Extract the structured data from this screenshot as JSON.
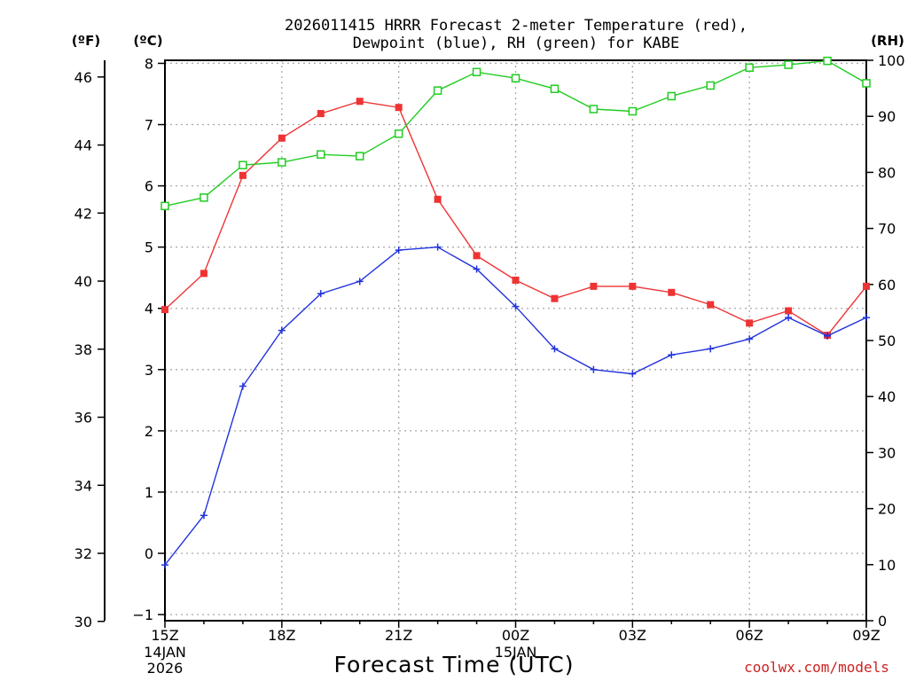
{
  "chart_data": {
    "type": "line",
    "title_line1": "2026011415 HRRR Forecast 2-meter Temperature (red),",
    "title_line2": "Dewpoint (blue), RH (green) for KABE",
    "left_outer_unit": "(ºF)",
    "left_inner_unit": "(ºC)",
    "right_unit": "(RH)",
    "xlabel": "Forecast Time (UTC)",
    "credit": "coolwx.com/models",
    "x_hours": [
      0,
      1,
      2,
      3,
      4,
      5,
      6,
      7,
      8,
      9,
      10,
      11,
      12,
      13,
      14,
      15,
      16,
      17,
      18
    ],
    "x_tick_positions": [
      0,
      3,
      6,
      9,
      12,
      15,
      18
    ],
    "x_tick_labels": [
      "15Z",
      "18Z",
      "21Z",
      "00Z",
      "03Z",
      "06Z",
      "09Z"
    ],
    "date_labels": [
      {
        "hour": 0,
        "lines": [
          "14JAN",
          "2026"
        ]
      },
      {
        "hour": 9,
        "lines": [
          "15JAN"
        ]
      }
    ],
    "celsius_ylim": [
      -1.1,
      8.05
    ],
    "celsius_ticks": [
      "-1",
      "0",
      "1",
      "2",
      "3",
      "4",
      "5",
      "6",
      "7",
      "8"
    ],
    "fahrenheit_ticks": [
      "30",
      "32",
      "34",
      "36",
      "38",
      "40",
      "42",
      "44",
      "46"
    ],
    "rh_ylim": [
      0,
      100
    ],
    "rh_ticks": [
      "0",
      "10",
      "20",
      "30",
      "40",
      "50",
      "60",
      "70",
      "80",
      "90",
      "100"
    ],
    "grid": "dotted",
    "series": [
      {
        "name": "Temperature",
        "color": "#ee3333",
        "marker": "filled-square",
        "values_c": [
          3.98,
          4.57,
          6.17,
          6.78,
          7.18,
          7.38,
          7.28,
          5.78,
          4.86,
          4.46,
          4.16,
          4.36,
          4.36,
          4.26,
          4.06,
          3.76,
          3.96,
          3.56,
          4.36
        ]
      },
      {
        "name": "Dewpoint",
        "color": "#2233dd",
        "marker": "plus",
        "values_c": [
          -0.19,
          0.62,
          2.73,
          3.64,
          4.24,
          4.44,
          4.95,
          5.0,
          4.64,
          4.03,
          3.34,
          3.0,
          2.93,
          3.24,
          3.34,
          3.5,
          3.85,
          3.55,
          3.85
        ]
      },
      {
        "name": "RH",
        "color": "#22cc22",
        "marker": "open-square",
        "values_rh": [
          74,
          75.5,
          81.3,
          81.8,
          83.2,
          82.9,
          86.9,
          94.6,
          97.9,
          96.8,
          94.9,
          91.3,
          90.9,
          93.6,
          95.5,
          98.7,
          99.2,
          99.9,
          95.9
        ]
      }
    ]
  }
}
